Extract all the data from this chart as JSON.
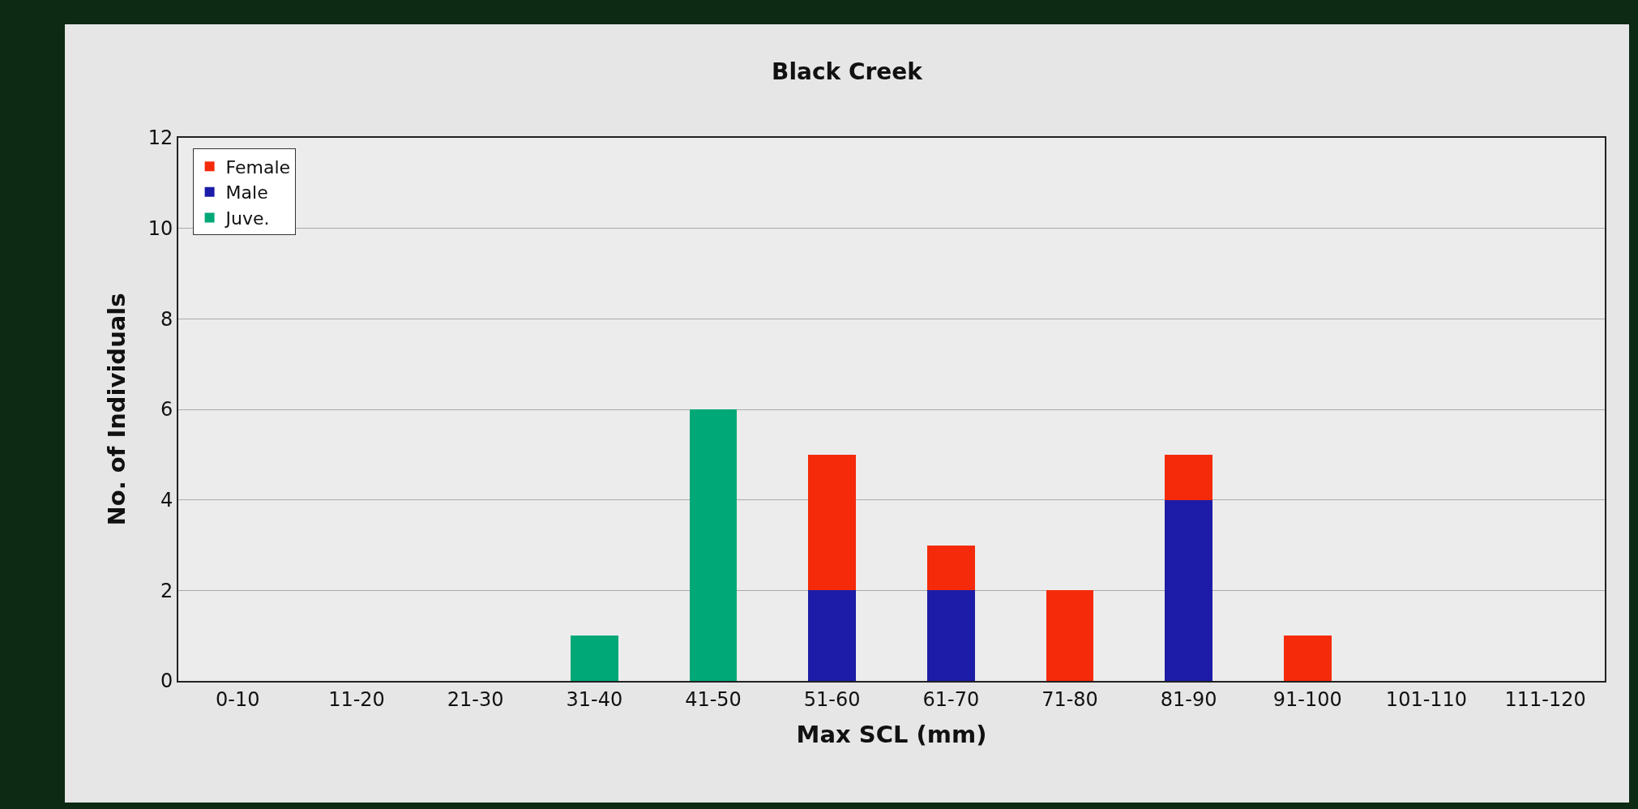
{
  "chart_data": {
    "type": "bar",
    "title": "Black Creek",
    "xlabel": "Max SCL (mm)",
    "ylabel": "No. of Individuals",
    "categories": [
      "0-10",
      "11-20",
      "21-30",
      "31-40",
      "41-50",
      "51-60",
      "61-70",
      "71-80",
      "81-90",
      "91-100",
      "101-110",
      "111-120"
    ],
    "stacked": true,
    "series": [
      {
        "name": "Juve.",
        "color": "#00a878",
        "values": [
          null,
          null,
          null,
          1,
          6,
          null,
          null,
          null,
          null,
          null,
          null,
          null
        ]
      },
      {
        "name": "Male",
        "color": "#1c1ca8",
        "values": [
          null,
          null,
          null,
          null,
          null,
          2,
          2,
          null,
          4,
          null,
          null,
          null
        ]
      },
      {
        "name": "Female",
        "color": "#f52a0a",
        "values": [
          null,
          null,
          null,
          null,
          null,
          3,
          1,
          2,
          1,
          1,
          null,
          null
        ]
      }
    ],
    "ylim": [
      0,
      12
    ],
    "yticks": [
      0,
      2,
      4,
      6,
      8,
      10,
      12
    ],
    "grid": "y",
    "legend": "top left"
  }
}
